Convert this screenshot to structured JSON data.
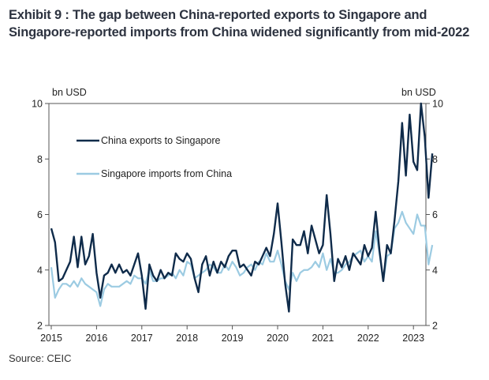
{
  "title": "Exhibit 9 : The gap between China-reported exports to Singapore and Singapore-reported imports from China widened significantly from mid-2022",
  "source": "Source: CEIC",
  "colors": {
    "series1": "#0f2b4a",
    "series2": "#9ccbe2",
    "axis": "#555555"
  },
  "chart_data": {
    "type": "line",
    "ylabel_left": "bn USD",
    "ylabel_right": "bn USD",
    "ylim": [
      2,
      10
    ],
    "y_ticks": [
      "2",
      "4",
      "6",
      "8",
      "10"
    ],
    "x_ticks": [
      "2015",
      "2016",
      "2017",
      "2018",
      "2019",
      "2020",
      "2021",
      "2022",
      "2023"
    ],
    "x_start": "2015-01",
    "legend_position": "upper-left",
    "grid": false,
    "series": [
      {
        "name": "China exports to Singapore",
        "values": [
          5.5,
          5.0,
          3.6,
          3.7,
          4.0,
          4.3,
          5.2,
          4.1,
          5.2,
          4.2,
          4.5,
          5.3,
          3.9,
          3.0,
          3.8,
          3.9,
          4.2,
          3.9,
          4.2,
          3.9,
          4.0,
          3.8,
          4.2,
          4.6,
          3.8,
          2.6,
          4.2,
          3.8,
          3.6,
          4.0,
          3.7,
          3.9,
          3.8,
          4.6,
          4.4,
          4.3,
          4.6,
          4.4,
          3.7,
          3.2,
          4.2,
          4.5,
          3.8,
          4.3,
          3.9,
          4.3,
          4.1,
          4.5,
          4.7,
          4.7,
          4.1,
          4.2,
          4.0,
          3.8,
          4.3,
          4.2,
          4.5,
          4.8,
          4.5,
          5.3,
          6.4,
          5.0,
          3.5,
          2.5,
          5.1,
          4.9,
          4.9,
          5.4,
          4.6,
          5.6,
          5.1,
          4.6,
          4.9,
          6.7,
          5.3,
          3.6,
          4.4,
          4.1,
          4.5,
          4.0,
          4.6,
          4.4,
          4.2,
          4.9,
          4.5,
          4.8,
          6.1,
          4.7,
          3.6,
          4.9,
          4.6,
          5.8,
          7.2,
          9.3,
          7.4,
          9.6,
          7.9,
          7.6,
          10.0,
          8.8,
          6.6,
          8.2
        ]
      },
      {
        "name": "Singapore imports from China",
        "values": [
          4.1,
          3.0,
          3.3,
          3.5,
          3.5,
          3.4,
          3.6,
          3.4,
          3.7,
          3.5,
          3.4,
          3.3,
          3.2,
          2.7,
          3.3,
          3.5,
          3.4,
          3.4,
          3.4,
          3.5,
          3.6,
          3.5,
          3.8,
          3.7,
          3.7,
          3.5,
          4.0,
          3.6,
          3.6,
          3.7,
          3.7,
          3.8,
          3.9,
          3.7,
          4.0,
          3.8,
          4.3,
          4.2,
          3.7,
          3.8,
          3.9,
          4.0,
          4.2,
          4.1,
          3.9,
          3.9,
          4.2,
          4.0,
          4.3,
          4.1,
          3.8,
          3.9,
          4.1,
          4.2,
          4.0,
          4.3,
          4.2,
          4.6,
          4.3,
          4.3,
          4.7,
          4.2,
          3.6,
          3.3,
          3.9,
          3.6,
          3.9,
          4.0,
          4.0,
          4.1,
          4.3,
          4.1,
          4.6,
          4.0,
          4.4,
          3.9,
          3.9,
          4.0,
          4.2,
          4.3,
          4.5,
          4.6,
          4.7,
          4.3,
          4.5,
          4.3,
          5.4,
          4.6,
          3.6,
          4.5,
          4.6,
          5.5,
          5.7,
          6.1,
          5.7,
          5.5,
          5.3,
          6.0,
          5.6,
          5.6,
          4.2,
          4.9
        ]
      }
    ]
  }
}
